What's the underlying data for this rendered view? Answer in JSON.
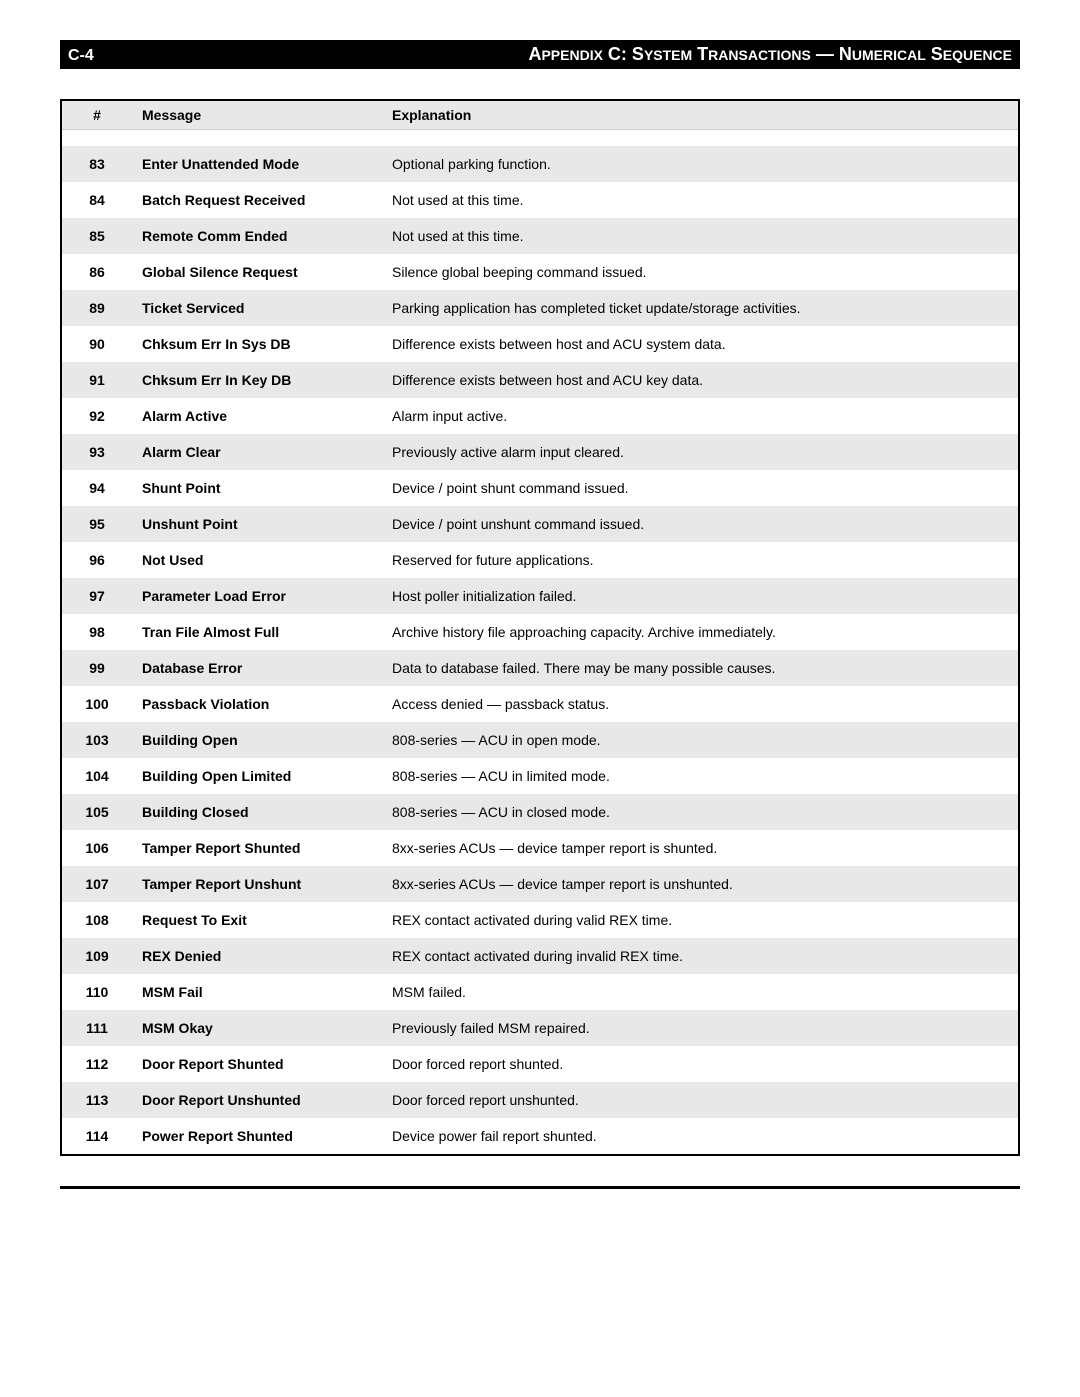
{
  "header": {
    "page_num": "C-4",
    "title_prefix": "A",
    "title_rest_1": "PPENDIX",
    "title_c": " C: S",
    "title_rest_2": "YSTEM",
    "title_t": " T",
    "title_rest_3": "RANSACTIONS",
    "title_dash": " — N",
    "title_rest_4": "UMERICAL",
    "title_s": " S",
    "title_rest_5": "EQUENCE"
  },
  "table": {
    "columns": {
      "num": "#",
      "message": "Message",
      "explanation": "Explanation"
    },
    "rows": [
      {
        "num": "83",
        "msg": "Enter Unattended Mode",
        "exp": "Optional parking function.",
        "shaded": true
      },
      {
        "num": "84",
        "msg": "Batch Request Received",
        "exp": "Not used at this time.",
        "shaded": false
      },
      {
        "num": "85",
        "msg": "Remote Comm Ended",
        "exp": "Not used at this time.",
        "shaded": true
      },
      {
        "num": "86",
        "msg": "Global Silence Request",
        "exp": "Silence global beeping command issued.",
        "shaded": false
      },
      {
        "num": "89",
        "msg": "Ticket Serviced",
        "exp": "Parking application has completed ticket update/storage activities.",
        "shaded": true
      },
      {
        "num": "90",
        "msg": "Chksum Err In Sys DB",
        "exp": "Difference exists between host and ACU system data.",
        "shaded": false
      },
      {
        "num": "91",
        "msg": "Chksum Err In Key DB",
        "exp": "Difference exists between host and ACU key data.",
        "shaded": true
      },
      {
        "num": "92",
        "msg": "Alarm Active",
        "exp": "Alarm input active.",
        "shaded": false
      },
      {
        "num": "93",
        "msg": "Alarm Clear",
        "exp": "Previously active alarm input cleared.",
        "shaded": true
      },
      {
        "num": "94",
        "msg": "Shunt Point",
        "exp": "Device / point shunt command issued.",
        "shaded": false
      },
      {
        "num": "95",
        "msg": "Unshunt Point",
        "exp": "Device / point unshunt command issued.",
        "shaded": true
      },
      {
        "num": "96",
        "msg": "Not Used",
        "exp": "Reserved for future applications.",
        "shaded": false
      },
      {
        "num": "97",
        "msg": "Parameter Load Error",
        "exp": "Host poller initialization failed.",
        "shaded": true
      },
      {
        "num": "98",
        "msg": "Tran File Almost Full",
        "exp": "Archive history file approaching capacity.  Archive immediately.",
        "shaded": false
      },
      {
        "num": "99",
        "msg": "Database Error",
        "exp": "Data to database failed.  There may be many possible causes.",
        "shaded": true
      },
      {
        "num": "100",
        "msg": "Passback Violation",
        "exp": "Access denied — passback status.",
        "shaded": false
      },
      {
        "num": "103",
        "msg": "Building Open",
        "exp": "808-series — ACU in open mode.",
        "shaded": true
      },
      {
        "num": "104",
        "msg": "Building Open Limited",
        "exp": "808-series —  ACU in limited mode.",
        "shaded": false
      },
      {
        "num": "105",
        "msg": "Building Closed",
        "exp": "808-series —  ACU in closed mode.",
        "shaded": true
      },
      {
        "num": "106",
        "msg": "Tamper Report Shunted",
        "exp": "8xx-series ACUs — device tamper report is shunted.",
        "shaded": false
      },
      {
        "num": "107",
        "msg": "Tamper Report Unshunt",
        "exp": "8xx-series ACUs — device tamper report is unshunted.",
        "shaded": true
      },
      {
        "num": "108",
        "msg": "Request To Exit",
        "exp": "REX contact activated during valid REX time.",
        "shaded": false
      },
      {
        "num": "109",
        "msg": "REX Denied",
        "exp": "REX contact activated during invalid REX time.",
        "shaded": true
      },
      {
        "num": "110",
        "msg": "MSM Fail",
        "exp": "MSM failed.",
        "shaded": false
      },
      {
        "num": "111",
        "msg": "MSM Okay",
        "exp": "Previously failed MSM repaired.",
        "shaded": true
      },
      {
        "num": "112",
        "msg": "Door Report Shunted",
        "exp": "Door forced report shunted.",
        "shaded": false
      },
      {
        "num": "113",
        "msg": "Door Report Unshunted",
        "exp": "Door forced report unshunted.",
        "shaded": true
      },
      {
        "num": "114",
        "msg": "Power Report Shunted",
        "exp": "Device power fail report shunted.",
        "shaded": false
      }
    ]
  }
}
